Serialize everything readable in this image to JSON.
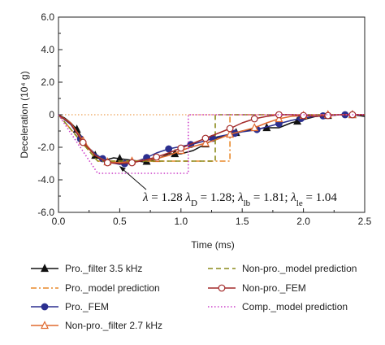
{
  "chart_data": {
    "type": "line",
    "xlabel": "Time (ms)",
    "ylabel": "Deceleration (10⁴ g)",
    "xlim": [
      0,
      2.5
    ],
    "ylim": [
      -6,
      6
    ],
    "xticks": [
      "0.0",
      "0.5",
      "1.0",
      "1.5",
      "2.0",
      "2.5"
    ],
    "yticks": [
      "-6.0",
      "-4.0",
      "-2.0",
      "0",
      "2.0",
      "4.0",
      "6.0"
    ],
    "grid": false,
    "legend_position": "bottom",
    "annotation": "λ = 1.28 λ_D = 1.28; λ_lb = 1.81; λ_le = 1.04",
    "annotation_parts": [
      "λ",
      " = 1.28 ",
      "λ",
      "D",
      " = 1.28; ",
      "λ",
      "lb",
      " = 1.81; ",
      "λ",
      "le",
      " = 1.04"
    ],
    "annotation_arrow_to": [
      0.47,
      -3.05
    ],
    "series": [
      {
        "name": "Pro._filter 3.5 kHz",
        "color": "#111111",
        "style": "solid",
        "marker": "triangle-filled",
        "x": [
          0,
          0.05,
          0.1,
          0.15,
          0.2,
          0.25,
          0.3,
          0.35,
          0.4,
          0.45,
          0.5,
          0.6,
          0.7,
          0.8,
          0.9,
          1.0,
          1.1,
          1.2,
          1.3,
          1.4,
          1.5,
          1.6,
          1.7,
          1.8,
          1.9,
          2.0,
          2.1,
          2.2,
          2.3,
          2.4,
          2.5
        ],
        "y": [
          0,
          -0.2,
          -0.5,
          -0.9,
          -1.5,
          -2.1,
          -2.5,
          -2.8,
          -2.75,
          -2.65,
          -2.7,
          -2.8,
          -2.9,
          -2.75,
          -2.4,
          -2.4,
          -2.2,
          -1.8,
          -1.4,
          -1.2,
          -1.0,
          -0.9,
          -0.8,
          -0.8,
          -0.5,
          -0.3,
          -0.1,
          -0.05,
          0,
          0,
          -0.1
        ],
        "marker_x": [
          0.15,
          0.3,
          0.5,
          0.72,
          0.95,
          1.2,
          1.45,
          1.7,
          1.95,
          2.2,
          2.4
        ]
      },
      {
        "name": "Pro._model prediction",
        "color": "#e8892a",
        "style": "dashdot",
        "marker": "none",
        "x": [
          0,
          0.32,
          1.4,
          1.4,
          2.5
        ],
        "y": [
          0,
          -2.85,
          -2.85,
          0,
          0
        ]
      },
      {
        "name": "Pro._FEM",
        "color": "#2b2f8f",
        "style": "solid",
        "marker": "circle-filled",
        "x": [
          0,
          0.1,
          0.2,
          0.3,
          0.4,
          0.5,
          0.6,
          0.7,
          0.8,
          0.9,
          1.0,
          1.1,
          1.2,
          1.3,
          1.4,
          1.5,
          1.6,
          1.7,
          1.8,
          1.9,
          2.0,
          2.1,
          2.2,
          2.3,
          2.4,
          2.5
        ],
        "y": [
          0,
          -0.6,
          -1.7,
          -2.4,
          -2.9,
          -3.05,
          -2.95,
          -2.7,
          -2.35,
          -2.1,
          -1.95,
          -1.8,
          -1.6,
          -1.35,
          -1.2,
          -1.05,
          -0.95,
          -0.75,
          -0.55,
          -0.35,
          -0.2,
          -0.1,
          -0.05,
          0,
          0,
          0
        ],
        "marker_x": [
          0.18,
          0.36,
          0.54,
          0.72,
          0.9,
          1.08,
          1.26,
          1.44,
          1.62,
          1.8,
          1.98,
          2.16,
          2.34
        ]
      },
      {
        "name": "Non-pro._filter 2.7 kHz",
        "color": "#e06a2f",
        "style": "solid",
        "marker": "triangle-open",
        "x": [
          0,
          0.1,
          0.2,
          0.3,
          0.4,
          0.5,
          0.6,
          0.7,
          0.8,
          0.9,
          1.0,
          1.1,
          1.2,
          1.3,
          1.4,
          1.5,
          1.6,
          1.7,
          1.8,
          1.9,
          2.0,
          2.1,
          2.2,
          2.3,
          2.4,
          2.5
        ],
        "y": [
          0,
          -0.5,
          -1.6,
          -2.5,
          -2.9,
          -2.95,
          -2.85,
          -2.8,
          -2.7,
          -2.5,
          -2.2,
          -1.95,
          -1.75,
          -1.5,
          -1.2,
          -1.0,
          -0.8,
          -0.5,
          -0.25,
          -0.1,
          -0.05,
          0,
          0,
          0,
          0,
          0
        ],
        "marker_x": [
          0.2,
          0.4,
          0.6,
          0.8,
          1.0,
          1.2,
          1.4,
          1.6,
          1.8,
          2.0,
          2.2,
          2.4
        ]
      },
      {
        "name": "Non-pro._model prediction",
        "color": "#8a8a1a",
        "style": "dashed",
        "marker": "none",
        "x": [
          0,
          0.32,
          1.28,
          1.28,
          2.5
        ],
        "y": [
          0,
          -2.85,
          -2.85,
          0,
          0
        ]
      },
      {
        "name": "Non-pro._FEM",
        "color": "#a32a2a",
        "style": "solid",
        "marker": "circle-open",
        "x": [
          0,
          0.1,
          0.2,
          0.3,
          0.4,
          0.5,
          0.6,
          0.7,
          0.8,
          0.9,
          1.0,
          1.1,
          1.2,
          1.3,
          1.4,
          1.5,
          1.6,
          1.7,
          1.8,
          1.9,
          2.0,
          2.1,
          2.2,
          2.3,
          2.4,
          2.5
        ],
        "y": [
          0,
          -0.55,
          -1.7,
          -2.5,
          -2.95,
          -3.0,
          -2.95,
          -2.8,
          -2.6,
          -2.35,
          -2.05,
          -1.75,
          -1.45,
          -1.15,
          -0.85,
          -0.5,
          -0.25,
          -0.1,
          0,
          0,
          -0.05,
          -0.1,
          -0.05,
          0,
          0,
          0
        ],
        "marker_x": [
          0.2,
          0.4,
          0.6,
          0.8,
          1.0,
          1.2,
          1.4,
          1.6,
          1.8,
          2.0,
          2.2,
          2.4
        ]
      },
      {
        "name": "Comp._model prediction",
        "color": "#cc3fc8",
        "style": "dotted",
        "marker": "none",
        "x": [
          0,
          0.32,
          1.06,
          1.06,
          2.5
        ],
        "y": [
          0,
          -3.6,
          -3.6,
          0,
          0
        ]
      }
    ]
  },
  "reference_line": {
    "y": 0,
    "color": "#e8892a",
    "style": "dotted"
  }
}
